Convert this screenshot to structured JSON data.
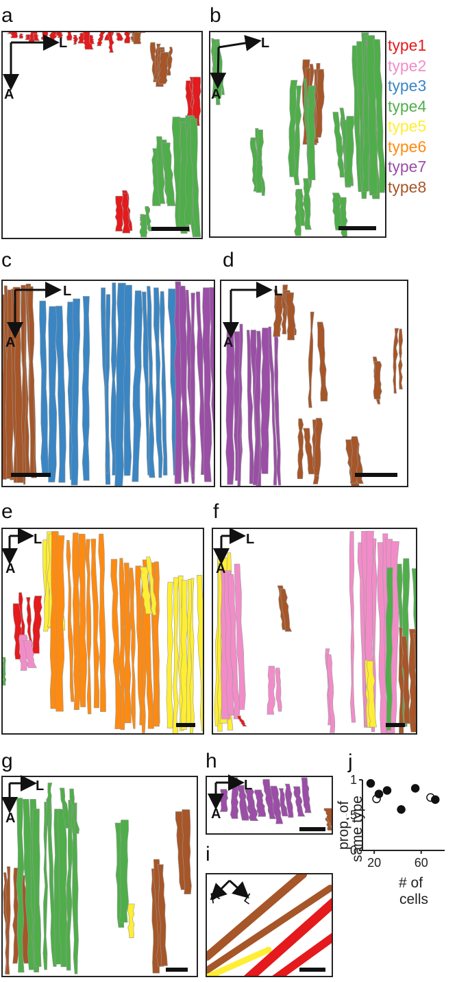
{
  "panel_letters": {
    "a": "a",
    "b": "b",
    "c": "c",
    "d": "d",
    "e": "e",
    "f": "f",
    "g": "g",
    "h": "h",
    "i": "i",
    "j": "j"
  },
  "axis_labels": {
    "lateral": "L",
    "anterior": "A"
  },
  "legend": [
    {
      "label": "type1",
      "color": "#e41a1c"
    },
    {
      "label": "type2",
      "color": "#f28cc8"
    },
    {
      "label": "type3",
      "color": "#3a86c4"
    },
    {
      "label": "type4",
      "color": "#4fae4a"
    },
    {
      "label": "type5",
      "color": "#ffee33"
    },
    {
      "label": "type6",
      "color": "#ff8a10"
    },
    {
      "label": "type7",
      "color": "#9a4ea6"
    },
    {
      "label": "type8",
      "color": "#a65628"
    }
  ],
  "panel_j": {
    "ylabel_line1": "prop. of",
    "ylabel_line2": "same type",
    "xlabel_line1": "# of",
    "xlabel_line2": "cells",
    "yticks": [
      "1",
      "0.5",
      "0"
    ],
    "xticks": [
      "20",
      "60"
    ]
  },
  "chart_data": {
    "type": "scatter",
    "xlabel": "# of cells",
    "ylabel": "prop. of same type",
    "ylim": [
      0,
      1
    ],
    "xticks": [
      20,
      60
    ],
    "yticks": [
      0,
      0.5,
      1
    ],
    "points": [
      {
        "x": 17,
        "y": 0.95,
        "filled": true
      },
      {
        "x": 22,
        "y": 0.73,
        "filled": false
      },
      {
        "x": 24,
        "y": 0.8,
        "filled": true
      },
      {
        "x": 31,
        "y": 0.85,
        "filled": true
      },
      {
        "x": 43,
        "y": 0.58,
        "filled": true
      },
      {
        "x": 55,
        "y": 0.88,
        "filled": true
      },
      {
        "x": 68,
        "y": 0.75,
        "filled": false
      },
      {
        "x": 72,
        "y": 0.72,
        "filled": true
      }
    ]
  }
}
